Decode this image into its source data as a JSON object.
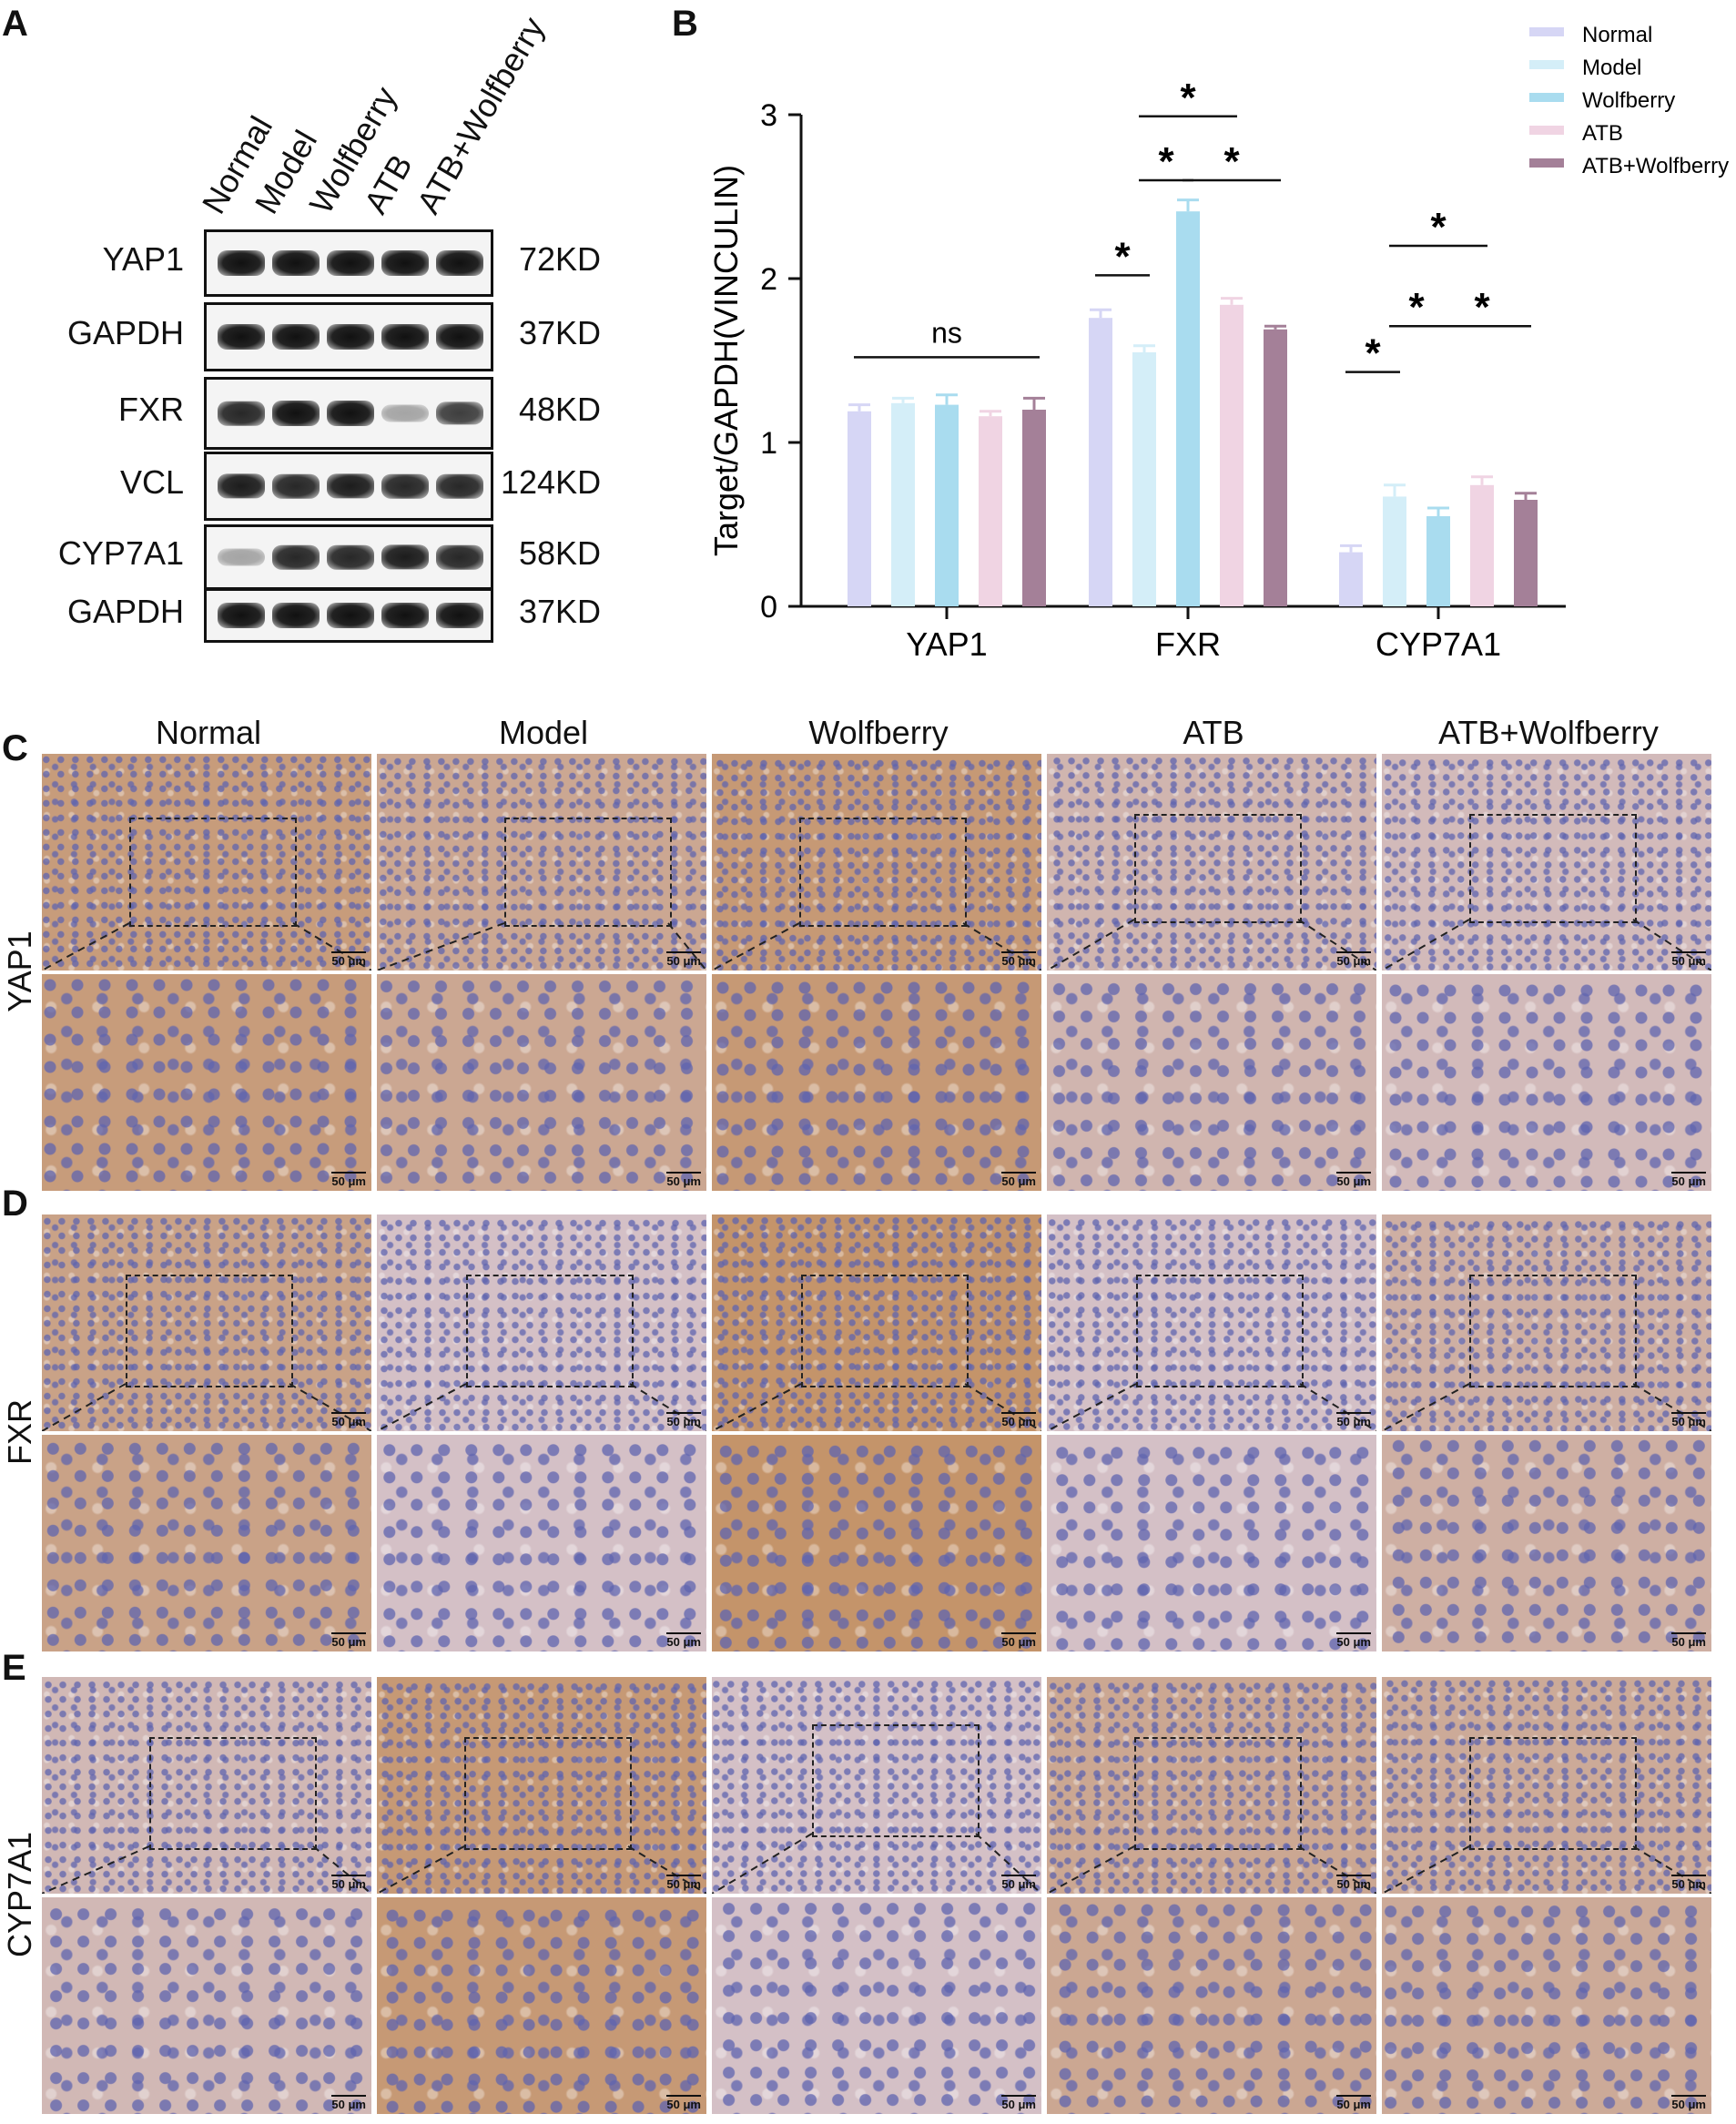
{
  "panels": {
    "A": "A",
    "B": "B",
    "C": "C",
    "D": "D",
    "E": "E"
  },
  "blot": {
    "lanes": [
      "Normal",
      "Model",
      "Wolfberry",
      "ATB",
      "ATB+Wolfberry"
    ],
    "rows": [
      {
        "target": "YAP1",
        "size": "72KD",
        "intensity": [
          1,
          1,
          1,
          1,
          1
        ]
      },
      {
        "target": "GAPDH",
        "size": "37KD",
        "intensity": [
          1,
          1,
          1,
          1,
          1
        ]
      },
      {
        "target": "FXR",
        "size": "48KD",
        "intensity": [
          0.9,
          1,
          1,
          0.35,
          0.8
        ]
      },
      {
        "target": "VCL",
        "size": "124KD",
        "intensity": [
          0.95,
          0.9,
          0.95,
          0.9,
          0.9
        ]
      },
      {
        "target": "CYP7A1",
        "size": "58KD",
        "intensity": [
          0.35,
          0.9,
          0.9,
          0.95,
          0.9
        ]
      },
      {
        "target": "GAPDH",
        "size": "37KD",
        "intensity": [
          1,
          1,
          1,
          1,
          1
        ]
      }
    ]
  },
  "chart_data": {
    "type": "bar",
    "categories": [
      "YAP1",
      "FXR",
      "CYP7A1"
    ],
    "ylabel": "Target/GAPDH(VINCULIN)",
    "ylim": [
      0,
      3
    ],
    "yticks": [
      "0",
      "1",
      "2",
      "3"
    ],
    "legend_position": "top-right",
    "series": [
      {
        "name": "Normal",
        "color": "#d6d6f5",
        "values": [
          1.19,
          1.76,
          0.33
        ],
        "errors": [
          0.04,
          0.05,
          0.04
        ]
      },
      {
        "name": "Model",
        "color": "#d4eef8",
        "values": [
          1.24,
          1.55,
          0.67
        ],
        "errors": [
          0.03,
          0.04,
          0.07
        ]
      },
      {
        "name": "Wolfberry",
        "color": "#a9dcef",
        "values": [
          1.23,
          2.41,
          0.55
        ],
        "errors": [
          0.06,
          0.07,
          0.05
        ]
      },
      {
        "name": "ATB",
        "color": "#f0d4e3",
        "values": [
          1.16,
          1.84,
          0.74
        ],
        "errors": [
          0.03,
          0.04,
          0.05
        ]
      },
      {
        "name": "ATB+Wolfberry",
        "color": "#a48098",
        "values": [
          1.2,
          1.69,
          0.65
        ],
        "errors": [
          0.07,
          0.02,
          0.04
        ]
      }
    ],
    "annotations": [
      {
        "group": 0,
        "from": 0,
        "to": 4,
        "y": 1.52,
        "label": "ns"
      },
      {
        "group": 1,
        "from": 0,
        "to": 1,
        "y": 2.02,
        "label": "*"
      },
      {
        "group": 1,
        "from": 1,
        "to": 2,
        "y": 2.6,
        "label": "*"
      },
      {
        "group": 1,
        "from": 2,
        "to": 4,
        "y": 2.6,
        "label": "*"
      },
      {
        "group": 1,
        "from": 1,
        "to": 3,
        "y": 2.99,
        "label": "*"
      },
      {
        "group": 2,
        "from": 0,
        "to": 1,
        "y": 1.43,
        "label": "*"
      },
      {
        "group": 2,
        "from": 1,
        "to": 2,
        "y": 1.71,
        "label": "*"
      },
      {
        "group": 2,
        "from": 2,
        "to": 4,
        "y": 1.71,
        "label": "*"
      },
      {
        "group": 2,
        "from": 1,
        "to": 3,
        "y": 2.2,
        "label": "*"
      }
    ]
  },
  "ihc": {
    "columns": [
      "Normal",
      "Model",
      "Wolfberry",
      "ATB",
      "ATB+Wolfberry"
    ],
    "scale_label": "50 μm",
    "rows": [
      {
        "label": "YAP1",
        "stain": [
          0.8,
          0.6,
          0.85,
          0.35,
          0.25
        ]
      },
      {
        "label": "FXR",
        "stain": [
          0.7,
          0.15,
          0.95,
          0.15,
          0.45
        ]
      },
      {
        "label": "CYP7A1",
        "stain": [
          0.3,
          0.85,
          0.15,
          0.6,
          0.55
        ]
      }
    ]
  }
}
